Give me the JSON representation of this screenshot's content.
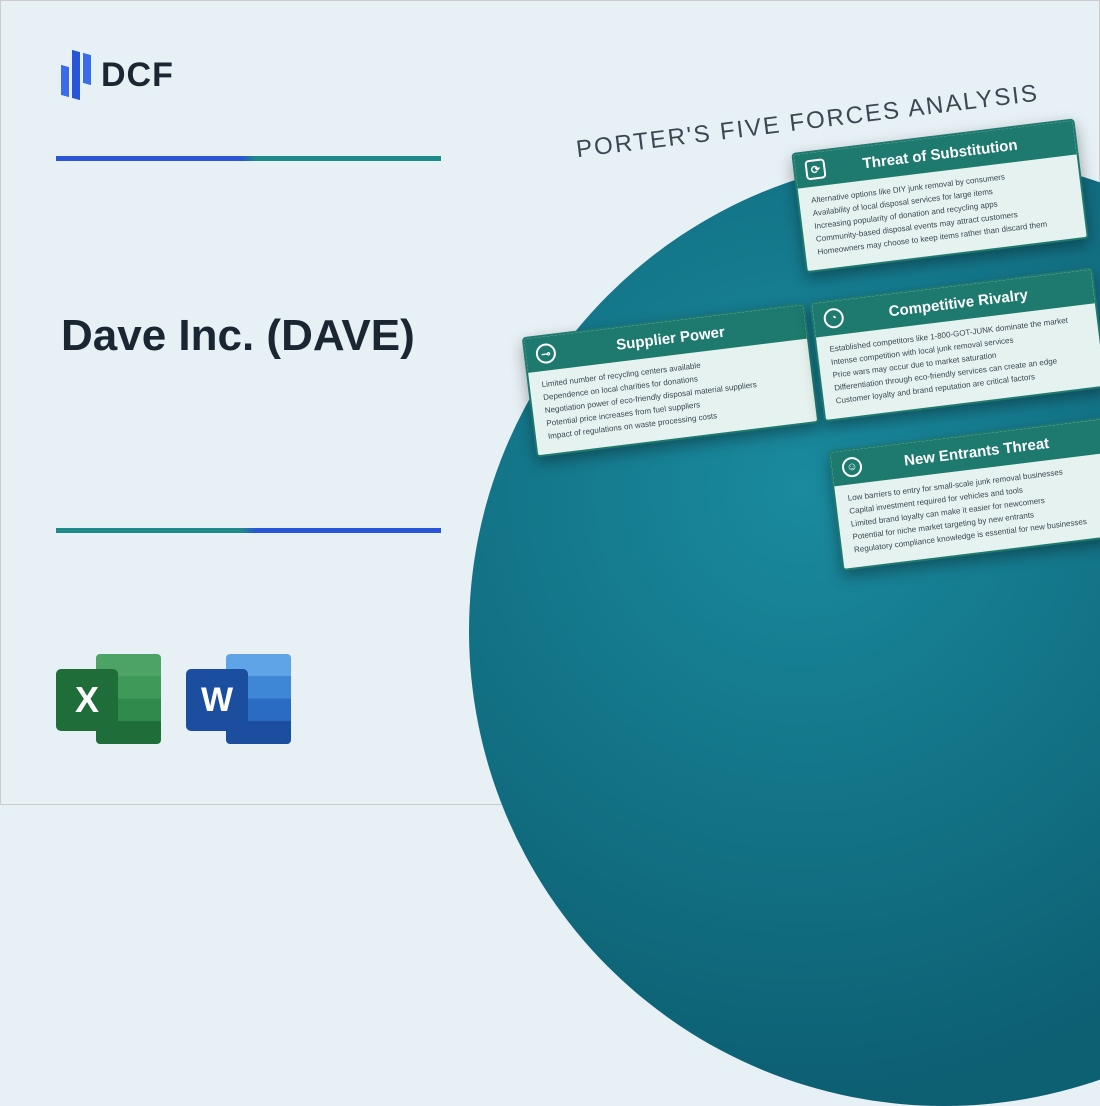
{
  "logo_text": "DCF",
  "main_title": "Dave Inc. (DAVE)",
  "diagram_title": "PORTER'S FIVE FORCES ANALYSIS",
  "excel_letter": "X",
  "word_letter": "W",
  "colors": {
    "page_bg": "#e7f0f5",
    "logo_blue": "#2856d6",
    "teal": "#1e8a8a",
    "card_header": "#1e7a6e",
    "card_bg": "#e6f2ef",
    "circle_light": "#1a8a9e",
    "circle_dark": "#0d5f72",
    "excel_green": "#1f6e3a",
    "word_blue": "#1b4e9e",
    "title_text": "#1a2733"
  },
  "cards": {
    "substitution": {
      "title": "Threat of Substitution",
      "lines": [
        "Alternative options like DIY junk removal by consumers",
        "Availability of local disposal services for large items",
        "Increasing popularity of donation and recycling apps",
        "Community-based disposal events may attract customers",
        "Homeowners may choose to keep items rather than discard them"
      ]
    },
    "supplier": {
      "title": "Supplier Power",
      "lines": [
        "Limited number of recycling centers available",
        "Dependence on local charities for donations",
        "Negotiation power of eco-friendly disposal material suppliers",
        "Potential price increases from fuel suppliers",
        "Impact of regulations on waste processing costs"
      ]
    },
    "rivalry": {
      "title": "Competitive Rivalry",
      "lines": [
        "Established competitors like 1-800-GOT-JUNK dominate the market",
        "Intense competition with local junk removal services",
        "Price wars may occur due to market saturation",
        "Differentiation through eco-friendly services can create an edge",
        "Customer loyalty and brand reputation are critical factors"
      ]
    },
    "entrants": {
      "title": "New Entrants Threat",
      "lines": [
        "Low barriers to entry for small-scale junk removal businesses",
        "Capital investment required for vehicles and tools",
        "Limited brand loyalty can make it easier for newcomers",
        "Potential for niche market targeting by new entrants",
        "Regulatory compliance knowledge is essential for new businesses"
      ]
    }
  }
}
